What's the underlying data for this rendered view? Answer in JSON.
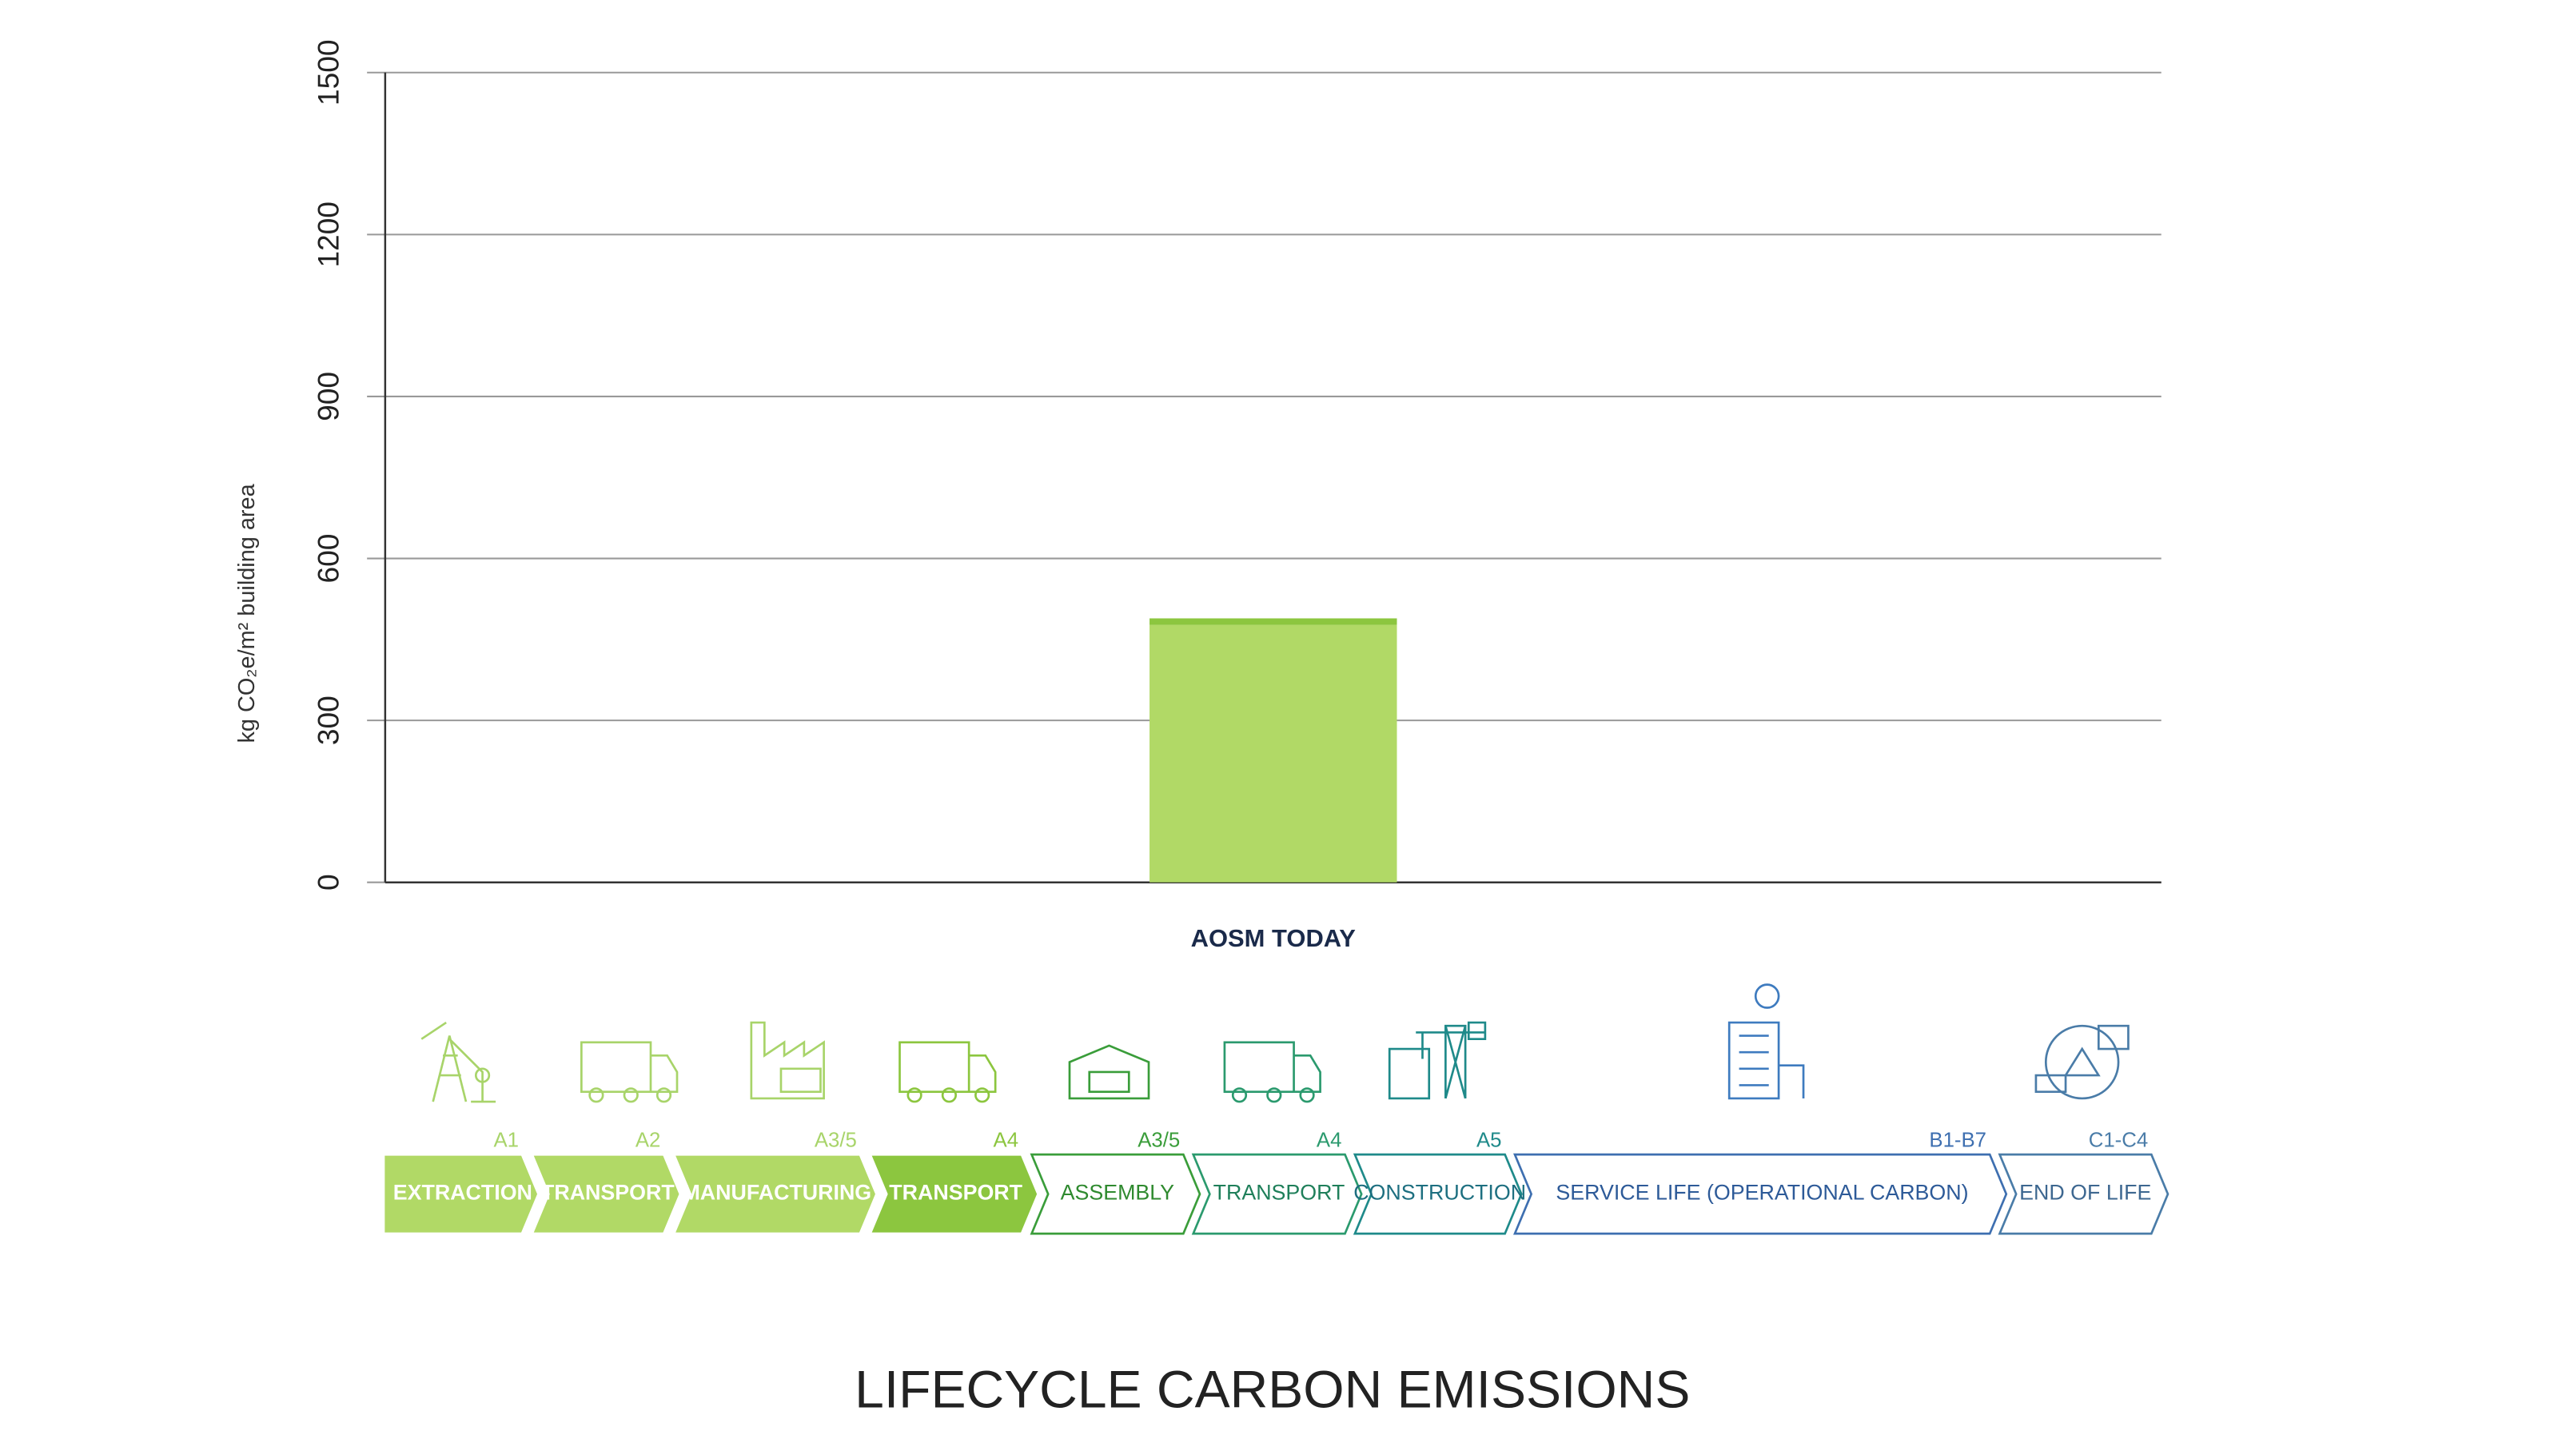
{
  "chart_data": {
    "type": "bar",
    "title": "LIFECYCLE CARBON EMISSIONS",
    "y_label": "kg CO₂e/m² building area",
    "categories": [
      "AOSM TODAY"
    ],
    "series": [
      {
        "color": "#b1d966",
        "values": [
          477
        ]
      },
      {
        "color": "#8cc63f",
        "values": [
          12
        ]
      }
    ],
    "ylim": [
      0,
      1500
    ],
    "yticks": [
      0,
      300,
      600,
      900,
      1200,
      1500
    ],
    "grid": true
  },
  "lifecycle_stages": [
    {
      "label": "EXTRACTION",
      "code": "A1"
    },
    {
      "label": "TRANSPORT",
      "code": "A2"
    },
    {
      "label": "MANUFACTURING",
      "code": "A3/5"
    },
    {
      "label": "TRANSPORT",
      "code": "A4"
    },
    {
      "label": "ASSEMBLY",
      "code": "A3/5"
    },
    {
      "label": "TRANSPORT",
      "code": "A4"
    },
    {
      "label": "CONSTRUCTION",
      "code": "A5"
    },
    {
      "label": "SERVICE LIFE (OPERATIONAL CARBON)",
      "code": "B1-B7"
    },
    {
      "label": "END OF LIFE",
      "code": "C1-C4"
    }
  ]
}
